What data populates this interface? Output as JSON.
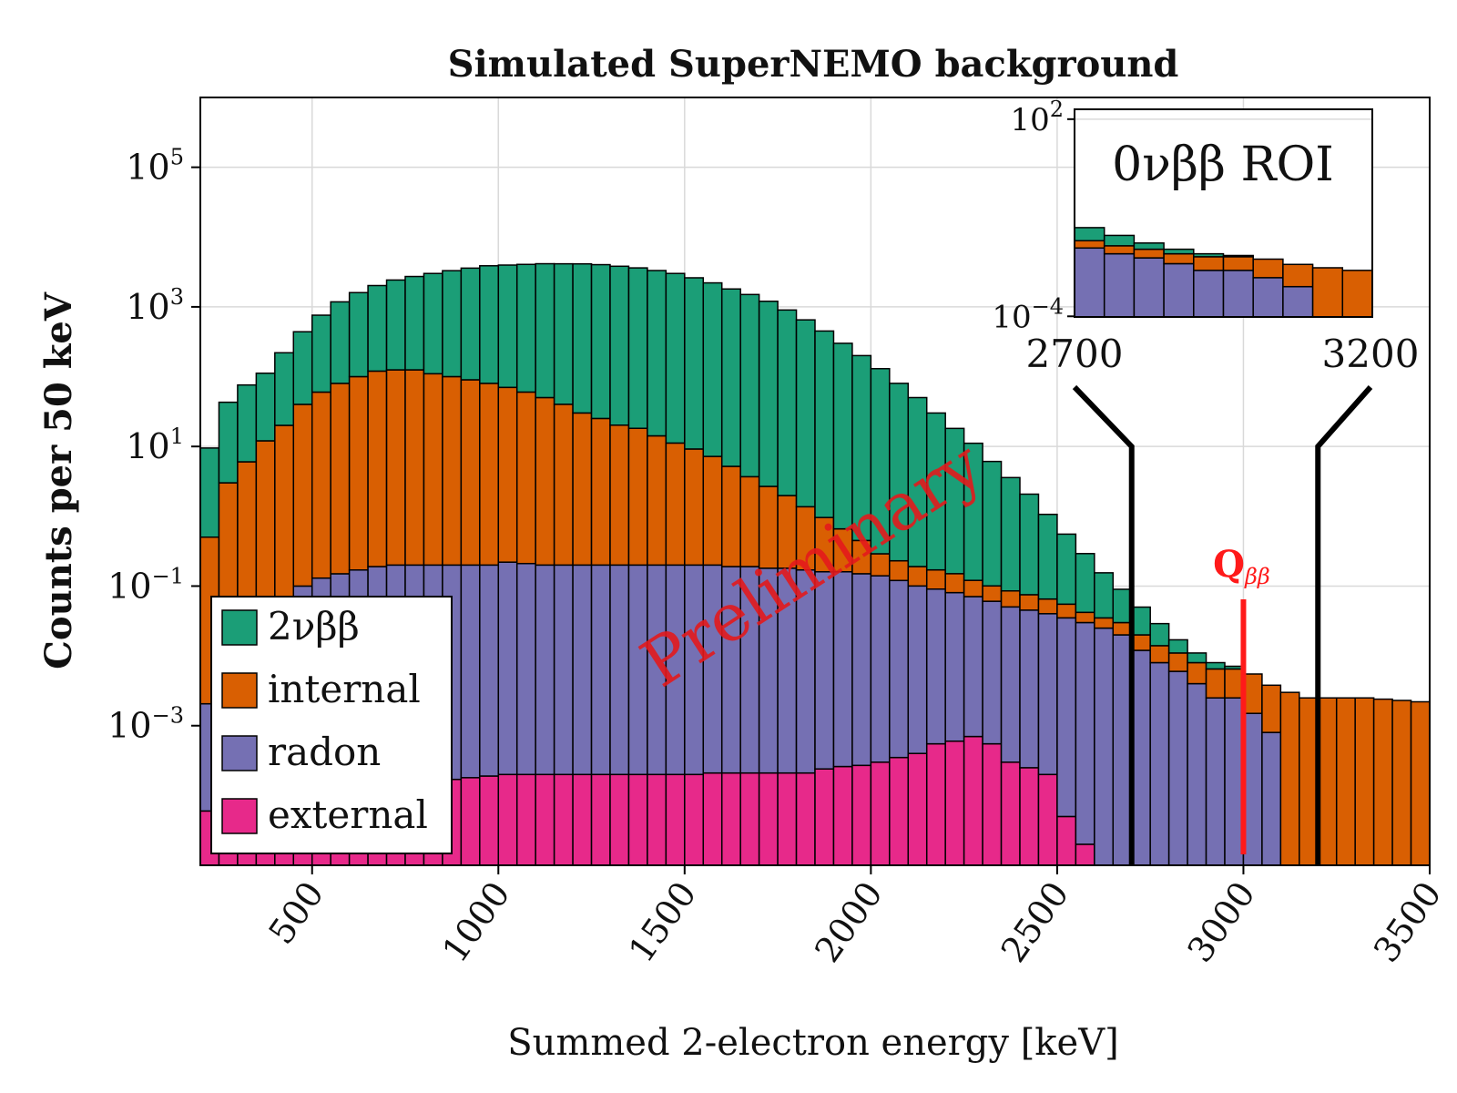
{
  "chart_data": {
    "type": "bar",
    "stacked": true,
    "title": "Simulated SuperNEMO background",
    "xlabel": "Summed 2-electron energy [keV]",
    "ylabel": "Counts per 50 keV",
    "yscale": "log",
    "xlim": [
      200,
      3500
    ],
    "ylim": [
      1e-05,
      1000000
    ],
    "bin_width": 50,
    "x_ticks": [
      500,
      1000,
      1500,
      2000,
      2500,
      3000,
      3500
    ],
    "y_ticks": [
      {
        "value": 0.001,
        "base": "10",
        "exp": "−3"
      },
      {
        "value": 0.1,
        "base": "10",
        "exp": "−1"
      },
      {
        "value": 10,
        "base": "10",
        "exp": "1"
      },
      {
        "value": 1000,
        "base": "10",
        "exp": "3"
      },
      {
        "value": 100000,
        "base": "10",
        "exp": "5"
      }
    ],
    "grid": true,
    "legend_position": "bottom-left",
    "bin_starts": [
      200,
      250,
      300,
      350,
      400,
      450,
      500,
      550,
      600,
      650,
      700,
      750,
      800,
      850,
      900,
      950,
      1000,
      1050,
      1100,
      1150,
      1200,
      1250,
      1300,
      1350,
      1400,
      1450,
      1500,
      1550,
      1600,
      1650,
      1700,
      1750,
      1800,
      1850,
      1900,
      1950,
      2000,
      2050,
      2100,
      2150,
      2200,
      2250,
      2300,
      2350,
      2400,
      2450,
      2500,
      2550,
      2600,
      2650,
      2700,
      2750,
      2800,
      2850,
      2900,
      2950,
      3000,
      3050,
      3100,
      3150,
      3200,
      3250,
      3300,
      3350,
      3400,
      3450
    ],
    "series": [
      {
        "name": "external",
        "color": "#e7298a",
        "values": [
          6e-05,
          3e-05,
          3e-05,
          3e-05,
          3e-05,
          5e-05,
          7e-05,
          0.0001,
          0.00012,
          0.00013,
          0.00014,
          0.00015,
          0.00016,
          0.00017,
          0.00018,
          0.00019,
          0.0002,
          0.0002,
          0.0002,
          0.0002,
          0.0002,
          0.0002,
          0.0002,
          0.0002,
          0.0002,
          0.0002,
          0.0002,
          0.00021,
          0.00021,
          0.00021,
          0.00021,
          0.00021,
          0.00021,
          0.00024,
          0.00026,
          0.00027,
          0.0003,
          0.00035,
          0.0004,
          0.00055,
          0.0006,
          0.0007,
          0.00055,
          0.0003,
          0.00025,
          0.0002,
          5e-05,
          2e-05,
          0,
          0,
          0,
          0,
          0,
          0,
          0,
          0,
          0,
          0,
          0,
          0,
          0,
          0,
          0,
          0,
          0,
          0
        ]
      },
      {
        "name": "radon",
        "color": "#7570b3",
        "values": [
          0.002,
          0.015,
          0.03,
          0.05,
          0.07,
          0.1,
          0.13,
          0.15,
          0.17,
          0.19,
          0.2,
          0.2,
          0.2,
          0.2,
          0.2,
          0.2,
          0.22,
          0.21,
          0.2,
          0.2,
          0.2,
          0.2,
          0.2,
          0.2,
          0.2,
          0.2,
          0.2,
          0.2,
          0.19,
          0.19,
          0.18,
          0.18,
          0.17,
          0.16,
          0.16,
          0.15,
          0.14,
          0.12,
          0.1,
          0.09,
          0.08,
          0.07,
          0.06,
          0.05,
          0.045,
          0.04,
          0.035,
          0.03,
          0.025,
          0.02,
          0.012,
          0.008,
          0.006,
          0.004,
          0.0025,
          0.0025,
          0.0015,
          0.0008,
          0,
          0,
          0,
          0,
          0,
          0,
          0,
          0
        ]
      },
      {
        "name": "internal",
        "color": "#d95f02",
        "values": [
          0.5,
          3,
          6,
          12,
          20,
          40,
          60,
          80,
          100,
          120,
          125,
          125,
          110,
          100,
          90,
          80,
          70,
          60,
          50,
          40,
          30,
          25,
          20,
          18,
          14,
          11,
          9,
          7,
          5,
          3.5,
          2.5,
          1.8,
          1.2,
          0.8,
          0.5,
          0.3,
          0.15,
          0.11,
          0.09,
          0.08,
          0.07,
          0.05,
          0.04,
          0.035,
          0.03,
          0.025,
          0.02,
          0.012,
          0.01,
          0.01,
          0.008,
          0.006,
          0.005,
          0.004,
          0.004,
          0.004,
          0.004,
          0.003,
          0.003,
          0.0025,
          0.0025,
          0.0025,
          0.0025,
          0.0024,
          0.0023,
          0.0022
        ]
      },
      {
        "name": "2νββ",
        "color": "#1b9e77",
        "values": [
          9,
          40,
          70,
          100,
          200,
          400,
          700,
          1100,
          1500,
          1900,
          2300,
          2600,
          2900,
          3200,
          3500,
          3800,
          3900,
          4000,
          4100,
          4100,
          4100,
          4000,
          3800,
          3600,
          3300,
          3000,
          2600,
          2200,
          1800,
          1500,
          1200,
          900,
          650,
          450,
          300,
          200,
          130,
          80,
          50,
          30,
          18,
          11,
          6,
          3.5,
          2,
          1,
          0.5,
          0.25,
          0.12,
          0.06,
          0.03,
          0.015,
          0.006,
          0.003,
          0.0015,
          0.0006,
          0,
          0,
          0,
          0,
          0,
          0,
          0,
          0,
          0,
          0
        ]
      }
    ]
  },
  "inset": {
    "label": "0νββ ROI",
    "xlim": [
      2700,
      3200
    ],
    "y_ticks": [
      {
        "value": 100,
        "base": "10",
        "exp": "2"
      },
      {
        "value": 0.0001,
        "base": "10",
        "exp": "−4"
      }
    ],
    "bin_start_index": 50,
    "bin_count": 10
  },
  "roi_lines": [
    {
      "value": 2700,
      "label": "2700"
    },
    {
      "value": 3200,
      "label": "3200"
    }
  ],
  "q_value": {
    "value": 3000,
    "label": "Q",
    "subscript": "ββ",
    "color": "#ff1a1a"
  },
  "watermark": "Preliminary",
  "legend": [
    {
      "label": "2νββ",
      "color": "#1b9e77"
    },
    {
      "label": "internal",
      "color": "#d95f02"
    },
    {
      "label": "radon",
      "color": "#7570b3"
    },
    {
      "label": "external",
      "color": "#e7298a"
    }
  ]
}
